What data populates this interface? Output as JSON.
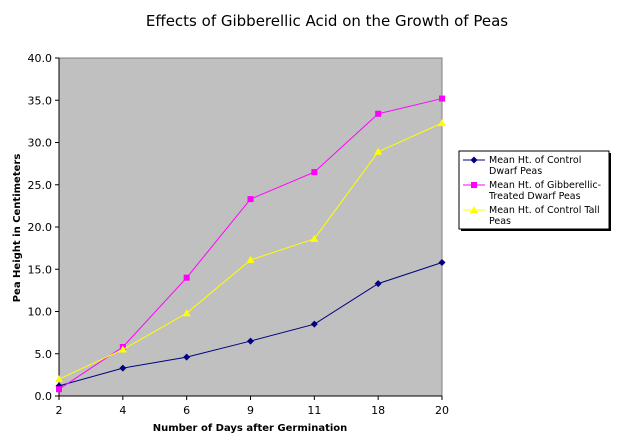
{
  "chart_data": {
    "type": "line",
    "title": "Effects of Gibberellic Acid on the Growth of Peas",
    "xlabel": "Number of Days after Germination",
    "ylabel": "Pea Height in Centimeters",
    "categories": [
      "2",
      "4",
      "6",
      "9",
      "11",
      "18",
      "20"
    ],
    "ylim": [
      0,
      40
    ],
    "yticks": [
      "0.0",
      "5.0",
      "10.0",
      "15.0",
      "20.0",
      "25.0",
      "30.0",
      "35.0",
      "40.0"
    ],
    "grid": false,
    "legend_position": "right",
    "plot_background": "#c0c0c0",
    "series": [
      {
        "name_lines": [
          "Mean Ht. of Control",
          "Dwarf Peas"
        ],
        "values": [
          1.2,
          3.3,
          4.6,
          6.5,
          8.5,
          13.3,
          15.8
        ],
        "color": "#000080",
        "marker": "diamond"
      },
      {
        "name_lines": [
          "Mean Ht. of Gibberellic-",
          "Treated Dwarf Peas"
        ],
        "values": [
          0.8,
          5.8,
          14.0,
          23.3,
          26.5,
          33.4,
          35.2
        ],
        "color": "#ff00ff",
        "marker": "square"
      },
      {
        "name_lines": [
          "Mean Ht. of Control Tall",
          "Peas"
        ],
        "values": [
          2.0,
          5.5,
          9.8,
          16.1,
          18.6,
          28.9,
          32.3
        ],
        "color": "#ffff00",
        "marker": "triangle"
      }
    ]
  }
}
